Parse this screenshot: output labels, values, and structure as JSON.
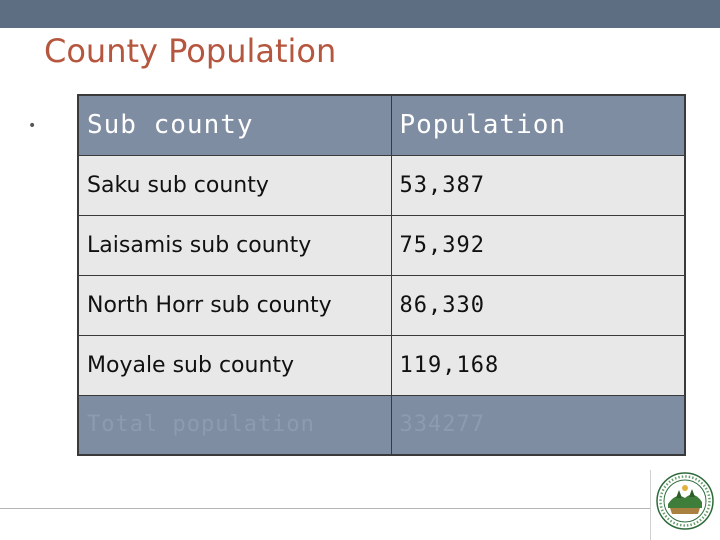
{
  "slide": {
    "title": "County Population",
    "bullet_glyph": "•"
  },
  "table": {
    "headers": [
      "Sub county",
      "Population"
    ],
    "rows": [
      [
        "Saku sub county",
        "53,387"
      ],
      [
        "Laisamis sub county",
        "75,392"
      ],
      [
        "North Horr sub county",
        "86,330"
      ],
      [
        "Moyale sub county",
        "119,168"
      ]
    ],
    "total": [
      "Total population",
      "334277"
    ]
  },
  "colors": {
    "top_bar": "#5d6e82",
    "title": "#b5563f",
    "header_fill": "#7f8da3",
    "row_fill": "#e8e8e8"
  },
  "icons": {
    "seal": "county-seal-icon"
  }
}
